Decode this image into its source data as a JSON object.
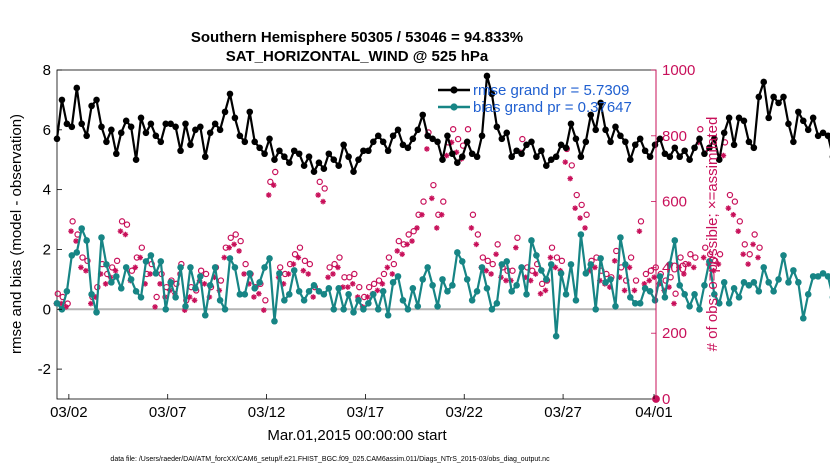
{
  "chart_data": {
    "type": "line",
    "title": "Southern Hemisphere 50305 / 53046 = 94.833%",
    "subtitle": "SAT_HORIZONTAL_WIND @ 525 hPa",
    "xlabel": "Mar.01,2015 00:00:00 start",
    "ylabel": "rmse and bias (model - observation)",
    "y2label": "# of obs: o=possible; ×=assimilated",
    "ylim": [
      -3,
      8
    ],
    "y2lim": [
      0,
      1000
    ],
    "xlim": [
      1.4,
      31.7
    ],
    "yticks": [
      -2,
      0,
      2,
      4,
      6,
      8
    ],
    "y2ticks": [
      0,
      200,
      400,
      600,
      800,
      1000
    ],
    "xticks": [
      {
        "x": 2,
        "label": "03/02"
      },
      {
        "x": 7,
        "label": "03/07"
      },
      {
        "x": 12,
        "label": "03/12"
      },
      {
        "x": 17,
        "label": "03/17"
      },
      {
        "x": 22,
        "label": "03/22"
      },
      {
        "x": 27,
        "label": "03/27"
      },
      {
        "x": 32,
        "label": "04/01"
      }
    ],
    "x_start": 1.4,
    "x_step": 0.25,
    "zero_line": 0,
    "colors": {
      "rmse": "#000000",
      "bias": "#178585",
      "obs": "#c8105a",
      "zero": "#b4b4b4"
    },
    "series": [
      {
        "name": "rmse grand pr = 5.7309",
        "axis": "left",
        "values": [
          5.7,
          7.0,
          6.2,
          6.1,
          7.4,
          6.2,
          5.8,
          6.8,
          7.0,
          6.1,
          5.6,
          6.0,
          5.2,
          5.9,
          6.3,
          6.1,
          5.0,
          6.4,
          5.9,
          6.2,
          5.8,
          5.6,
          6.2,
          6.2,
          6.1,
          5.3,
          6.2,
          5.5,
          6.0,
          6.1,
          5.1,
          5.9,
          6.2,
          6.0,
          6.6,
          7.2,
          6.4,
          5.8,
          5.6,
          6.6,
          5.6,
          5.4,
          5.2,
          5.7,
          5.0,
          5.3,
          5.1,
          4.9,
          5.3,
          5.2,
          4.8,
          5.1,
          4.6,
          4.9,
          4.7,
          5.2,
          5.0,
          4.8,
          5.5,
          5.1,
          4.6,
          5.0,
          5.3,
          5.3,
          5.6,
          5.8,
          5.6,
          5.3,
          5.8,
          6.0,
          5.5,
          5.4,
          5.7,
          6.0,
          6.5,
          5.8,
          5.7,
          5.6,
          5.0,
          5.8,
          5.2,
          4.9,
          5.1,
          5.6,
          5.2,
          5.1,
          5.8,
          7.8,
          7.2,
          6.1,
          5.7,
          5.9,
          5.1,
          5.3,
          5.2,
          5.5,
          5.6,
          5.1,
          5.3,
          4.8,
          5.0,
          5.1,
          5.5,
          5.4,
          6.2,
          5.7,
          5.1,
          5.6,
          6.5,
          6.0,
          6.9,
          6.0,
          5.6,
          6.1,
          5.8,
          5.6,
          5.0,
          5.5,
          5.7,
          5.3,
          5.1,
          5.5,
          5.7,
          5.2,
          5.1,
          5.4,
          5.1,
          5.3,
          5.0,
          5.4,
          5.7,
          5.2,
          5.4,
          5.7,
          5.0,
          5.9,
          6.4,
          5.5,
          6.4,
          6.3,
          5.6,
          5.4,
          7.1,
          7.6,
          6.4,
          7.1,
          6.9,
          7.1,
          6.2,
          5.6,
          6.6,
          6.3,
          6.0,
          6.4,
          5.8,
          5.9,
          5.8,
          5.1
        ]
      },
      {
        "name": "bias grand pr = 0.37647",
        "axis": "left",
        "values": [
          0.2,
          0.0,
          0.6,
          1.8,
          1.9,
          2.7,
          2.3,
          0.5,
          -0.1,
          2.4,
          1.5,
          0.9,
          1.1,
          0.7,
          1.4,
          1.0,
          0.6,
          0.4,
          1.6,
          1.8,
          1.2,
          1.6,
          0.0,
          0.9,
          0.4,
          1.4,
          0.1,
          1.4,
          0.7,
          1.1,
          -0.2,
          0.8,
          1.4,
          0.3,
          0.0,
          1.7,
          1.4,
          0.5,
          0.5,
          1.2,
          0.7,
          0.9,
          1.4,
          1.7,
          -0.4,
          1.2,
          0.3,
          0.5,
          1.3,
          0.6,
          0.3,
          0.6,
          0.8,
          0.6,
          0.5,
          0.7,
          0.0,
          0.7,
          0.0,
          0.5,
          -0.1,
          0.3,
          0.0,
          0.2,
          0.5,
          0.0,
          0.6,
          -0.2,
          0.9,
          1.1,
          0.3,
          0.0,
          0.7,
          0.1,
          1.0,
          1.4,
          0.8,
          0.1,
          1.0,
          0.6,
          0.8,
          1.9,
          1.6,
          1.0,
          0.3,
          0.6,
          1.4,
          0.7,
          0.0,
          0.2,
          1.5,
          1.6,
          0.6,
          0.8,
          1.4,
          0.5,
          2.3,
          1.8,
          1.3,
          1.0,
          1.5,
          -0.9,
          1.2,
          0.5,
          1.5,
          0.3,
          2.5,
          1.2,
          1.5,
          0.0,
          1.7,
          0.9,
          1.0,
          0.1,
          2.4,
          1.5,
          0.4,
          0.2,
          0.2,
          0.7,
          0.6,
          0.3,
          1.1,
          0.4,
          1.5,
          2.3,
          0.8,
          0.5,
          0.1,
          0.5,
          0.0,
          0.8,
          1.6,
          0.5,
          0.2,
          0.9,
          0.2,
          0.7,
          0.4,
          0.9,
          0.8,
          0.9,
          0.6,
          1.4,
          0.9,
          0.6,
          1.0,
          1.8,
          0.9,
          1.3,
          0.9,
          -0.3,
          0.5,
          1.1,
          1.1,
          1.2,
          1.1,
          0.4,
          1.1,
          0.9
        ]
      },
      {
        "name": "obs possible",
        "axis": "right",
        "marker": "o",
        "values": [
          320,
          310,
          290,
          540,
          500,
          430,
          420,
          310,
          340,
          410,
          380,
          400,
          420,
          540,
          530,
          390,
          430,
          460,
          380,
          410,
          310,
          380,
          340,
          360,
          350,
          410,
          300,
          340,
          330,
          390,
          380,
          340,
          400,
          360,
          460,
          490,
          500,
          480,
          410,
          380,
          340,
          350,
          300,
          660,
          690,
          400,
          380,
          410,
          440,
          460,
          420,
          410,
          340,
          660,
          640,
          400,
          410,
          430,
          370,
          370,
          380,
          340,
          310,
          340,
          350,
          360,
          380,
          430,
          410,
          480,
          470,
          500,
          510,
          560,
          600,
          810,
          650,
          560,
          600,
          780,
          820,
          790,
          770,
          820,
          560,
          500,
          430,
          420,
          410,
          470,
          400,
          390,
          390,
          490,
          790,
          400,
          390,
          410,
          350,
          360,
          460,
          430,
          420,
          760,
          710,
          620,
          590,
          560,
          420,
          430,
          390,
          380,
          370,
          450,
          400,
          360,
          430,
          360,
          540,
          380,
          390,
          400,
          380,
          360,
          370,
          320,
          430,
          410,
          440,
          430,
          820,
          460,
          440,
          420,
          440,
          780,
          620,
          600,
          540,
          470,
          440,
          500,
          460
        ]
      },
      {
        "name": "obs assimilated",
        "axis": "right",
        "marker": "x",
        "values": [
          290,
          290,
          280,
          510,
          480,
          400,
          390,
          290,
          310,
          380,
          350,
          370,
          390,
          510,
          500,
          360,
          400,
          430,
          350,
          380,
          280,
          350,
          310,
          330,
          320,
          380,
          270,
          310,
          300,
          360,
          350,
          310,
          370,
          330,
          430,
          460,
          470,
          450,
          380,
          350,
          310,
          320,
          270,
          620,
          650,
          370,
          350,
          380,
          410,
          430,
          390,
          380,
          310,
          620,
          600,
          370,
          380,
          400,
          340,
          340,
          350,
          310,
          280,
          310,
          320,
          330,
          350,
          400,
          380,
          450,
          440,
          470,
          480,
          520,
          560,
          760,
          610,
          520,
          560,
          740,
          780,
          750,
          730,
          780,
          520,
          470,
          400,
          390,
          380,
          440,
          370,
          360,
          360,
          460,
          750,
          370,
          360,
          380,
          320,
          330,
          430,
          400,
          390,
          720,
          670,
          580,
          550,
          520,
          390,
          400,
          360,
          350,
          340,
          420,
          370,
          330,
          400,
          330,
          510,
          350,
          360,
          370,
          350,
          330,
          340,
          290,
          400,
          380,
          410,
          400,
          780,
          430,
          410,
          390,
          410,
          740,
          580,
          560,
          510,
          440,
          410,
          470,
          430
        ]
      }
    ],
    "extra_points": [
      {
        "x": 31.7,
        "y2": 0,
        "label": "obs zero marker"
      }
    ],
    "legend_loc": "top-right"
  },
  "footer": {
    "text": "data file: /Users/raeder/DAI/ATM_forcXX/CAM6_setup/f.e21.FHIST_BGC.f09_025.CAM6assim.011/Diags_NTrS_2015-03/obs_diag_output.nc"
  }
}
